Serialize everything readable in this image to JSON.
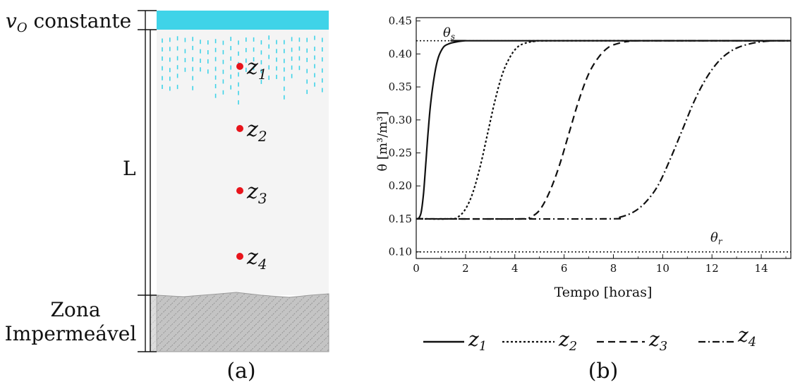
{
  "panel_a": {
    "top_label": "v",
    "top_label_sub": "O",
    "top_label_rest": " constante",
    "length_label": "L",
    "bottom_label_line1": "Zona",
    "bottom_label_line2": "Impermeável",
    "points": [
      {
        "label": "z",
        "sub": "1"
      },
      {
        "label": "z",
        "sub": "2"
      },
      {
        "label": "z",
        "sub": "3"
      },
      {
        "label": "z",
        "sub": "4"
      }
    ],
    "caption": "(a)",
    "colors": {
      "water": "#3fd3e8",
      "soil": "#f4f4f4",
      "point": "#e8141b",
      "rock": "#bdbdbd"
    }
  },
  "panel_b": {
    "caption": "(b)",
    "theta_s_label": "θ",
    "theta_s_sub": "s",
    "theta_r_label": "θ",
    "theta_r_sub": "r",
    "legend": [
      {
        "label": "z",
        "sub": "1",
        "dash": "solid"
      },
      {
        "label": "z",
        "sub": "2",
        "dash": "dotted"
      },
      {
        "label": "z",
        "sub": "3",
        "dash": "dashed"
      },
      {
        "label": "z",
        "sub": "4",
        "dash": "dashdot"
      }
    ]
  },
  "chart_data": {
    "type": "line",
    "xlabel": "Tempo [horas]",
    "ylabel": "θ [m³/m³]",
    "xlim": [
      0,
      15.2
    ],
    "ylim": [
      0.09,
      0.455
    ],
    "xticks": [
      "0",
      "2",
      "4",
      "6",
      "8",
      "10",
      "12",
      "14"
    ],
    "yticks": [
      "0.10",
      "0.15",
      "0.20",
      "0.25",
      "0.30",
      "0.35",
      "0.40",
      "0.45"
    ],
    "reference_lines": [
      {
        "y": 0.42,
        "style": "dotted"
      },
      {
        "y": 0.1,
        "style": "dotted"
      }
    ],
    "series": [
      {
        "name": "z1",
        "x": [
          0,
          0.1,
          0.2,
          0.3,
          0.4,
          0.5,
          0.6,
          0.75,
          0.9,
          1.1,
          1.3,
          1.6,
          2.0,
          2.5,
          15.2
        ],
        "y": [
          0.15,
          0.151,
          0.16,
          0.19,
          0.24,
          0.29,
          0.33,
          0.37,
          0.395,
          0.41,
          0.415,
          0.418,
          0.42,
          0.42,
          0.42
        ]
      },
      {
        "name": "z2",
        "x": [
          0,
          1.4,
          1.7,
          2.0,
          2.3,
          2.6,
          2.9,
          3.2,
          3.5,
          3.8,
          4.1,
          4.4,
          4.8,
          5.5,
          15.2
        ],
        "y": [
          0.15,
          0.15,
          0.153,
          0.165,
          0.19,
          0.23,
          0.28,
          0.33,
          0.37,
          0.395,
          0.41,
          0.416,
          0.419,
          0.42,
          0.42
        ]
      },
      {
        "name": "z3",
        "x": [
          0,
          4.3,
          4.6,
          5.0,
          5.4,
          5.8,
          6.2,
          6.6,
          7.0,
          7.4,
          7.8,
          8.2,
          8.6,
          9.2,
          15.2
        ],
        "y": [
          0.15,
          0.15,
          0.152,
          0.163,
          0.19,
          0.23,
          0.28,
          0.33,
          0.37,
          0.395,
          0.41,
          0.416,
          0.419,
          0.42,
          0.42
        ]
      },
      {
        "name": "z4",
        "x": [
          0,
          7.6,
          8.2,
          8.8,
          9.3,
          9.8,
          10.3,
          10.8,
          11.3,
          11.8,
          12.3,
          12.8,
          13.3,
          13.9,
          14.5,
          15.2
        ],
        "y": [
          0.15,
          0.15,
          0.152,
          0.16,
          0.175,
          0.2,
          0.24,
          0.285,
          0.33,
          0.365,
          0.39,
          0.405,
          0.413,
          0.418,
          0.42,
          0.42
        ]
      }
    ]
  }
}
